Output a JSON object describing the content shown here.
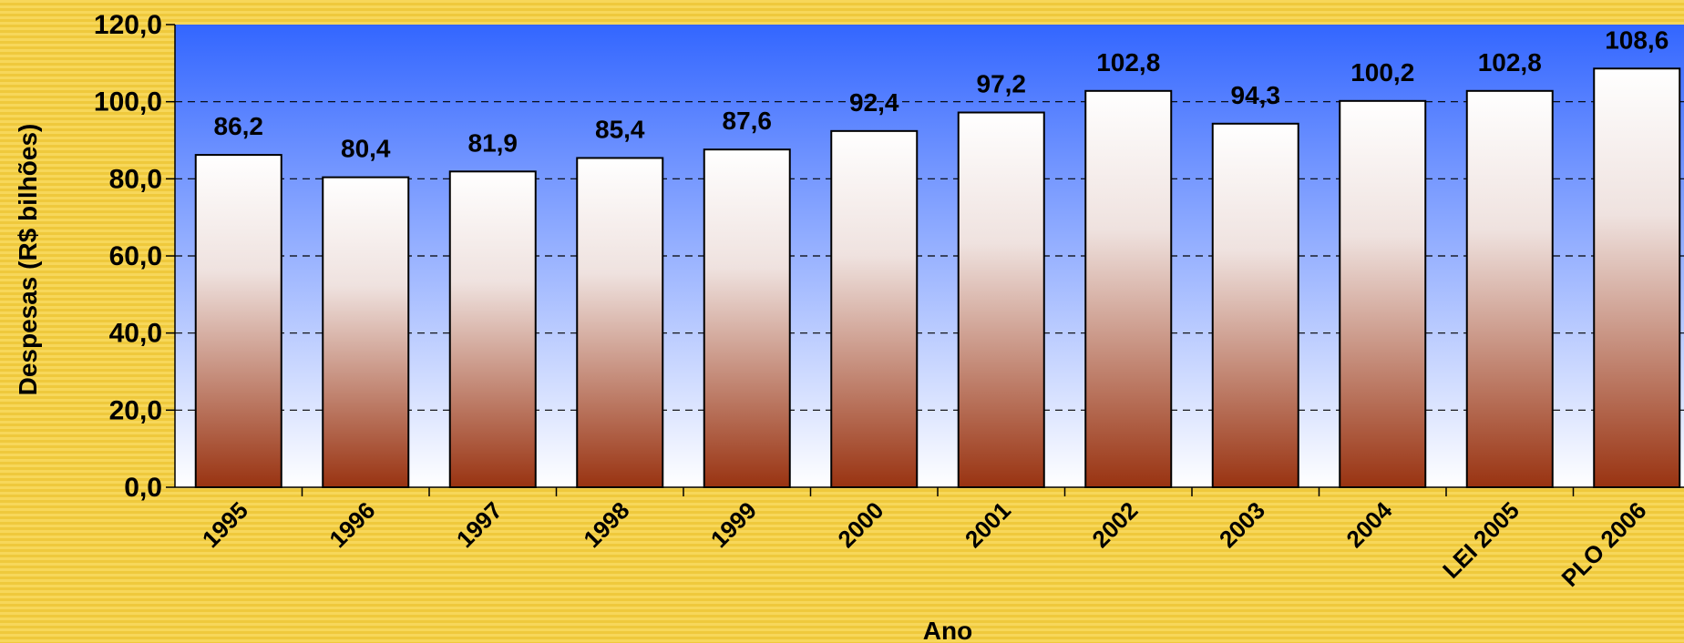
{
  "chart_data": {
    "type": "bar",
    "title": "",
    "xlabel": "Ano",
    "ylabel": "Despesas (R$ bilhões)",
    "categories": [
      "1995",
      "1996",
      "1997",
      "1998",
      "1999",
      "2000",
      "2001",
      "2002",
      "2003",
      "2004",
      "LEI 2005",
      "PLO 2006"
    ],
    "values": [
      86.2,
      80.4,
      81.9,
      85.4,
      87.6,
      92.4,
      97.2,
      102.8,
      94.3,
      100.2,
      102.8,
      108.6
    ],
    "value_labels": [
      "86,2",
      "80,4",
      "81,9",
      "85,4",
      "87,6",
      "92,4",
      "97,2",
      "102,8",
      "94,3",
      "100,2",
      "102,8",
      "108,6"
    ],
    "ylim": [
      0,
      120
    ],
    "yticks": [
      0,
      20,
      40,
      60,
      80,
      100,
      120
    ],
    "ytick_labels": [
      "0,0",
      "20,0",
      "40,0",
      "60,0",
      "80,0",
      "100,0",
      "120,0"
    ],
    "grid": true,
    "legend": "none"
  },
  "colors": {
    "plot_bg_top": "#3366ff",
    "plot_bg_bottom": "#ffffff",
    "bar_top": "#ffffff",
    "bar_bottom": "#993311",
    "slide_bg": "#f4cf45"
  }
}
